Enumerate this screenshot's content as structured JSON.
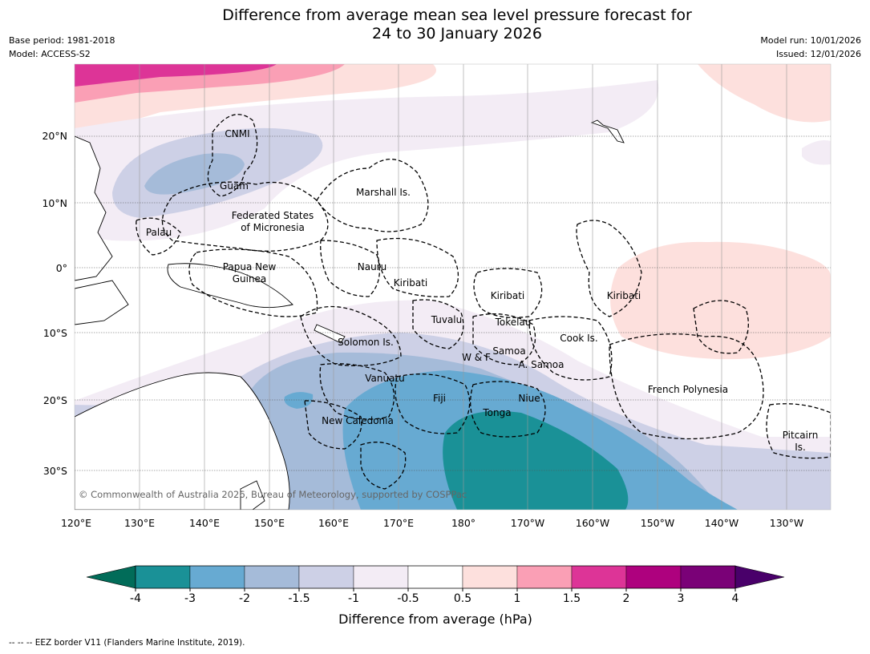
{
  "title": {
    "line1": "Difference from average mean sea level pressure forecast for",
    "line2": "24 to 30 January 2026"
  },
  "meta_left": {
    "base_period": "Base period: 1981-2018",
    "model": "Model: ACCESS-S2"
  },
  "meta_right": {
    "model_run": "Model run: 10/01/2026",
    "issued": "Issued: 12/01/2026"
  },
  "lon_labels": [
    "120°E",
    "130°E",
    "140°E",
    "150°E",
    "160°E",
    "170°E",
    "180°",
    "170°W",
    "160°W",
    "150°W",
    "140°W",
    "130°W"
  ],
  "lat_labels": [
    "20°N",
    "10°N",
    "0°",
    "10°S",
    "20°S",
    "30°S"
  ],
  "places": [
    "CNMI",
    "Guam",
    "Marshall Is.",
    "Federated States",
    "of Micronesia",
    "Palau",
    "Papua New",
    "Guinea",
    "Nauru",
    "Kiribati",
    "Kiribati",
    "Kiribati",
    "Tuvalu",
    "Tokelau",
    "Solomon Is.",
    "W & F",
    "Samoa",
    "A. Samoa",
    "Cook Is.",
    "Vanuatu",
    "Fiji",
    "Niue",
    "Tonga",
    "French Polynesia",
    "New Caledonia",
    "Pitcairn",
    "Is."
  ],
  "copyright": "© Commonwealth of Australia 2026, Bureau of Meteorology, supported by COSPPac",
  "colorbar": {
    "title": "Difference from average (hPa)",
    "tick_labels": [
      "-4",
      "-3",
      "-2",
      "-1.5",
      "-1",
      "-0.5",
      "0.5",
      "1",
      "1.5",
      "2",
      "3",
      "4"
    ],
    "colors": [
      "#1a9197",
      "#67aad2",
      "#a5bbd9",
      "#cdd0e6",
      "#f3ecf5",
      "#ffffff",
      "#fde0dd",
      "#fa9fb5",
      "#dd3497",
      "#ae017e",
      "#7a0177"
    ],
    "under_color": "#016c59",
    "over_color": "#49006a"
  },
  "footer": "--  --  -- EEZ border V11 (Flanders Marine Institute, 2019)."
}
